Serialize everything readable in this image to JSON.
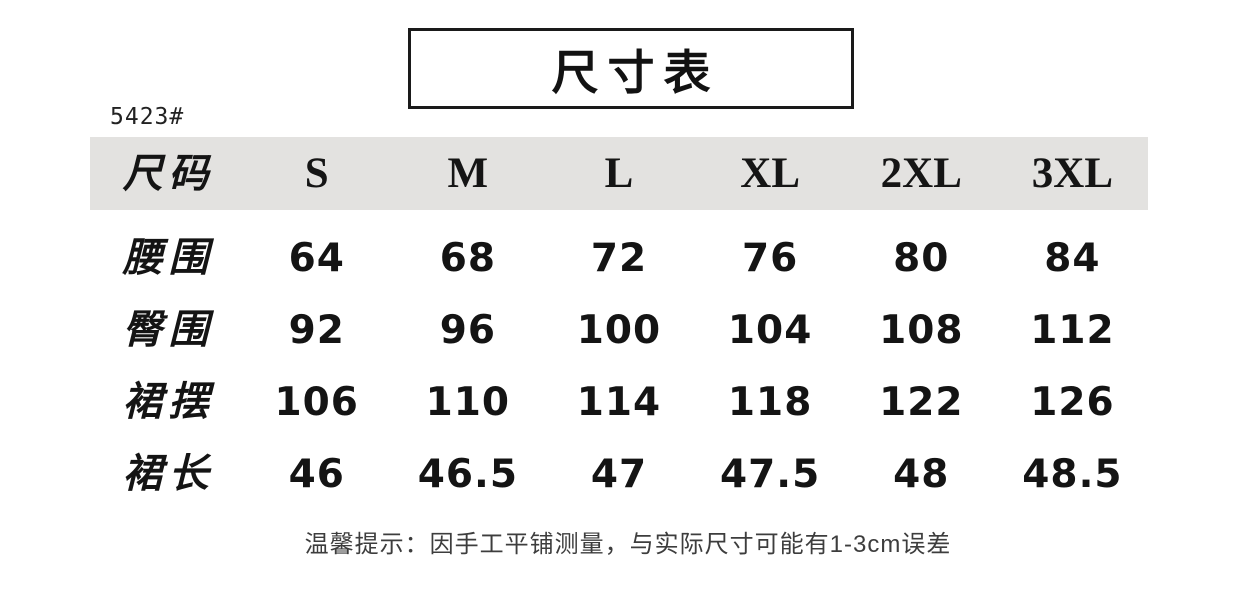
{
  "header": {
    "title": "尺寸表",
    "product_code": "5423#"
  },
  "chart_data": {
    "type": "table",
    "title": "尺寸表",
    "columns": [
      "尺码",
      "S",
      "M",
      "L",
      "XL",
      "2XL",
      "3XL"
    ],
    "rows": [
      {
        "label": "腰围",
        "values": [
          "64",
          "68",
          "72",
          "76",
          "80",
          "84"
        ]
      },
      {
        "label": "臀围",
        "values": [
          "92",
          "96",
          "100",
          "104",
          "108",
          "112"
        ]
      },
      {
        "label": "裙摆",
        "values": [
          "106",
          "110",
          "114",
          "118",
          "122",
          "126"
        ]
      },
      {
        "label": "裙长",
        "values": [
          "46",
          "46.5",
          "47",
          "47.5",
          "48",
          "48.5"
        ]
      }
    ]
  },
  "footer": {
    "note": "温馨提示：因手工平铺测量，与实际尺寸可能有1-3cm误差"
  },
  "colors": {
    "background": "#ffffff",
    "header_band": "#e3e2e0",
    "text": "#141414",
    "border": "#1a1a1a",
    "note_text": "#3d3d3d"
  }
}
